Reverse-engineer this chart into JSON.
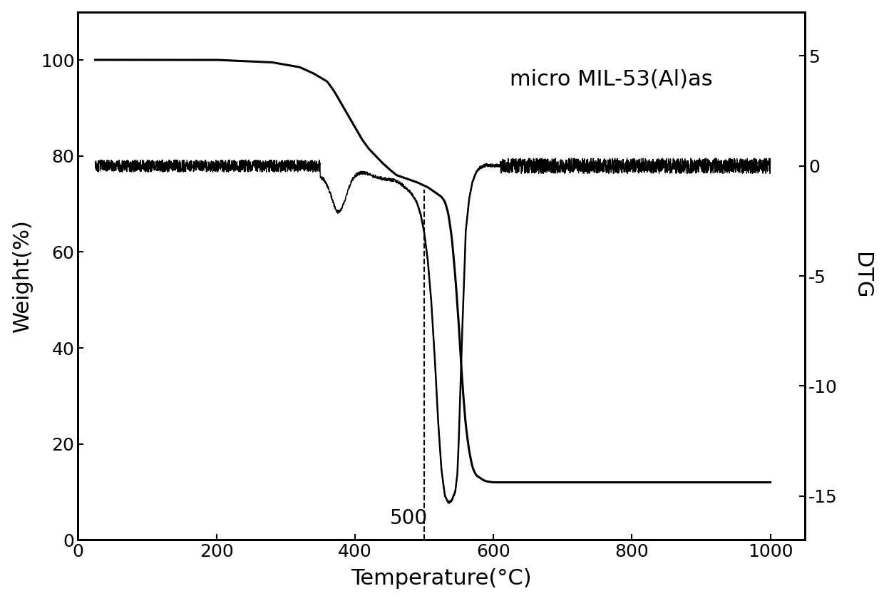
{
  "title": "",
  "xlabel": "Temperature(°C)",
  "ylabel_left": "Weight(%)",
  "ylabel_right": "DTG",
  "annotation_text": "micro MIL-53(Al)as",
  "dashed_x": 500,
  "dashed_label": "500",
  "xlim": [
    0,
    1050
  ],
  "ylim_left": [
    0,
    110
  ],
  "ylim_right": [
    -17,
    7
  ],
  "tga_x": [
    25,
    100,
    200,
    280,
    300,
    320,
    340,
    360,
    370,
    380,
    390,
    400,
    410,
    420,
    430,
    440,
    450,
    460,
    470,
    480,
    490,
    500,
    505,
    510,
    515,
    520,
    525,
    530,
    535,
    540,
    545,
    550,
    555,
    560,
    565,
    570,
    575,
    580,
    585,
    590,
    595,
    600,
    620,
    650,
    700,
    800,
    900,
    1000
  ],
  "tga_y": [
    100.0,
    100.0,
    100.0,
    99.5,
    99.0,
    98.5,
    97.2,
    95.5,
    93.5,
    91.0,
    88.5,
    86.0,
    83.5,
    81.5,
    80.0,
    78.5,
    77.2,
    76.0,
    75.5,
    75.0,
    74.5,
    73.8,
    73.5,
    73.0,
    72.5,
    72.0,
    71.5,
    70.5,
    68.0,
    63.0,
    55.0,
    45.0,
    33.0,
    24.0,
    18.5,
    15.0,
    13.5,
    13.0,
    12.5,
    12.2,
    12.1,
    12.0,
    12.0,
    12.0,
    12.0,
    12.0,
    12.0,
    12.0
  ],
  "dtg_x": [
    25,
    100,
    200,
    280,
    300,
    320,
    340,
    355,
    360,
    365,
    370,
    375,
    380,
    385,
    390,
    395,
    400,
    405,
    410,
    415,
    420,
    425,
    430,
    435,
    440,
    445,
    450,
    455,
    460,
    465,
    470,
    475,
    480,
    485,
    490,
    495,
    500,
    505,
    510,
    515,
    520,
    525,
    530,
    535,
    540,
    545,
    548,
    550,
    552,
    555,
    558,
    560,
    565,
    570,
    575,
    580,
    585,
    590,
    595,
    600,
    610,
    620,
    650,
    700,
    800,
    900,
    1000
  ],
  "dtg_y": [
    0.0,
    0.0,
    -0.05,
    -0.1,
    -0.15,
    -0.2,
    -0.35,
    -0.6,
    -0.9,
    -1.3,
    -1.8,
    -2.1,
    -2.0,
    -1.6,
    -1.1,
    -0.7,
    -0.45,
    -0.35,
    -0.3,
    -0.32,
    -0.38,
    -0.45,
    -0.5,
    -0.55,
    -0.58,
    -0.6,
    -0.62,
    -0.65,
    -0.7,
    -0.8,
    -0.9,
    -1.05,
    -1.2,
    -1.4,
    -1.7,
    -2.2,
    -3.0,
    -4.2,
    -6.0,
    -8.5,
    -11.5,
    -13.8,
    -15.0,
    -15.3,
    -15.2,
    -14.8,
    -14.0,
    -12.5,
    -10.5,
    -7.5,
    -5.0,
    -3.0,
    -1.5,
    -0.7,
    -0.3,
    -0.1,
    -0.02,
    0.05,
    0.03,
    0.01,
    0.01,
    0.0,
    0.0,
    0.0,
    0.0,
    0.0,
    0.0
  ],
  "line_color": "black",
  "background_color": "white",
  "fontsize_labels": 22,
  "fontsize_ticks": 18,
  "fontsize_annotation": 22,
  "fontsize_500": 20
}
